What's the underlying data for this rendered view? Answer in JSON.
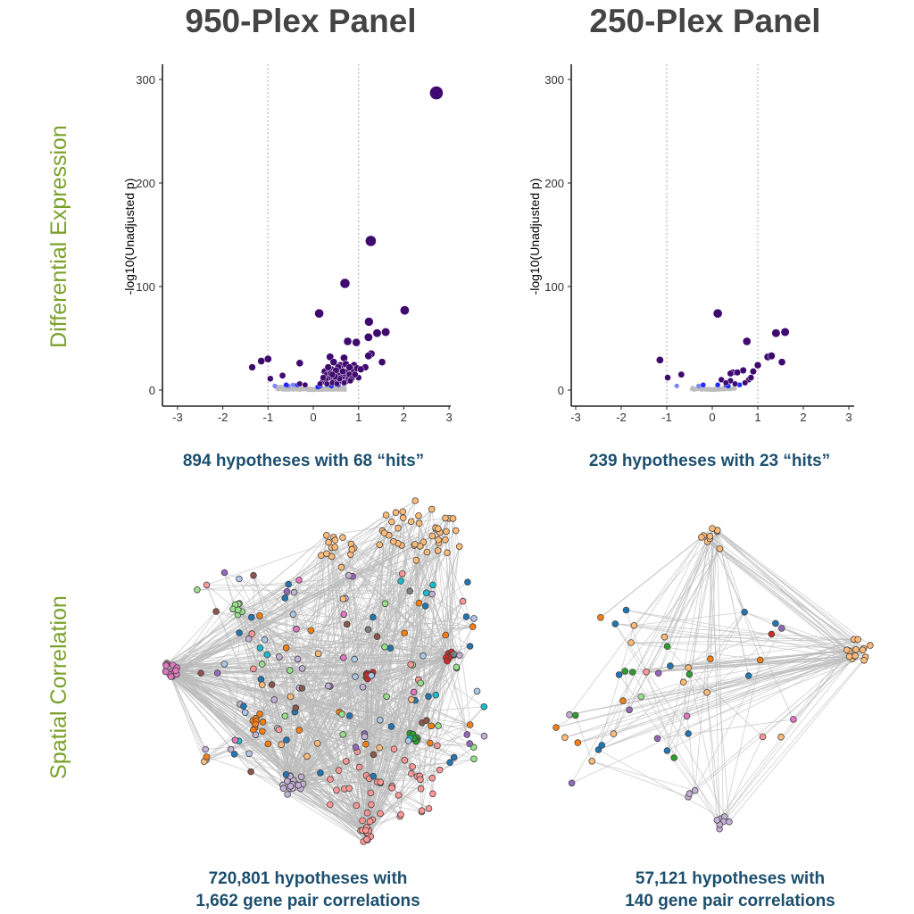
{
  "titles": {
    "left": "950-Plex Panel",
    "right": "250-Plex Panel"
  },
  "row_labels": {
    "top": "Differential Expression",
    "bottom": "Spatial Correlation"
  },
  "captions": {
    "volcano_left": "894 hypotheses with 68 “hits”",
    "volcano_right": "239 hypotheses with 23 “hits”",
    "network_left_line1": "720,801 hypotheses with",
    "network_left_line2": "1,662 gene pair correlations",
    "network_right_line1": "57,121 hypotheses with",
    "network_right_line2": "140 gene pair correlations"
  },
  "colors": {
    "hit": "#3f0a70",
    "sig_blue": "#1f2cff",
    "light_blue": "#7b86ff",
    "nonsig": "#bdbdbd",
    "threshold": "#aaaaaa",
    "edge": "#bbbbbb"
  },
  "network_palette": [
    "#1f77b4",
    "#ff7f0e",
    "#ffbb78",
    "#2ca02c",
    "#98df8a",
    "#d62728",
    "#ff9896",
    "#9467bd",
    "#c5b0d5",
    "#8c564b",
    "#e377c2",
    "#7f7f7f",
    "#17becf",
    "#aec7e8"
  ],
  "chart_data": [
    {
      "type": "scatter",
      "title": "950-Plex Panel",
      "xlabel": "",
      "ylabel": "-log10(Unadjusted p)",
      "xlim": [
        -3,
        3
      ],
      "ylim": [
        -15,
        315
      ],
      "xticks": [
        "-3",
        "-2",
        "-1",
        "0",
        "1",
        "2",
        "3"
      ],
      "yticks": [
        "0",
        "100",
        "200",
        "300"
      ],
      "threshold_lines_x": [
        -1,
        1
      ],
      "grid": false,
      "hits": [
        [
          2.72,
          287
        ],
        [
          1.27,
          144
        ],
        [
          0.7,
          103
        ],
        [
          0.13,
          74
        ],
        [
          2.02,
          77
        ],
        [
          1.23,
          66
        ],
        [
          1.41,
          55
        ],
        [
          1.6,
          56
        ],
        [
          0.76,
          47
        ],
        [
          0.95,
          46
        ],
        [
          1.22,
          51
        ],
        [
          1.28,
          35
        ],
        [
          1.22,
          33
        ],
        [
          1.52,
          27
        ],
        [
          0.37,
          32
        ],
        [
          0.68,
          31
        ],
        [
          -0.3,
          26
        ],
        [
          -1.35,
          22
        ],
        [
          -1.15,
          28
        ],
        [
          -1.0,
          30
        ],
        [
          -0.95,
          11
        ],
        [
          -0.68,
          14
        ],
        [
          0.9,
          24
        ],
        [
          1.0,
          12
        ],
        [
          1.15,
          22
        ],
        [
          0.25,
          18
        ],
        [
          0.3,
          15
        ],
        [
          0.35,
          12
        ],
        [
          0.4,
          20
        ],
        [
          0.45,
          10
        ],
        [
          0.5,
          17
        ],
        [
          0.55,
          14
        ],
        [
          0.6,
          9
        ],
        [
          0.62,
          20
        ],
        [
          0.65,
          13
        ],
        [
          0.7,
          16
        ],
        [
          0.72,
          8
        ],
        [
          0.75,
          18
        ],
        [
          0.78,
          12
        ],
        [
          0.8,
          15
        ],
        [
          0.85,
          11
        ],
        [
          0.88,
          20
        ],
        [
          0.2,
          8
        ],
        [
          0.28,
          10
        ],
        [
          0.42,
          7
        ],
        [
          0.52,
          6
        ],
        [
          0.58,
          11
        ],
        [
          0.68,
          7
        ],
        [
          0.48,
          13
        ],
        [
          0.38,
          16
        ],
        [
          0.3,
          6
        ],
        [
          0.82,
          9
        ],
        [
          -0.3,
          6
        ],
        [
          -0.18,
          5
        ],
        [
          0.15,
          6
        ],
        [
          0.22,
          12
        ],
        [
          0.92,
          15
        ],
        [
          0.97,
          21
        ],
        [
          0.6,
          24
        ],
        [
          0.45,
          27
        ],
        [
          0.55,
          22
        ],
        [
          0.33,
          22
        ],
        [
          0.72,
          25
        ],
        [
          0.8,
          22
        ],
        [
          1.05,
          20
        ],
        [
          0.65,
          18
        ],
        [
          0.5,
          19
        ],
        [
          0.42,
          15
        ]
      ],
      "significant": [
        [
          -0.6,
          5
        ],
        [
          -0.35,
          5
        ],
        [
          0.15,
          4
        ],
        [
          0.3,
          5
        ],
        [
          0.4,
          4
        ],
        [
          0.55,
          5
        ],
        [
          0.1,
          3
        ]
      ],
      "weak": [
        [
          -0.85,
          4
        ],
        [
          -0.55,
          4
        ],
        [
          -0.45,
          5
        ]
      ]
    },
    {
      "type": "scatter",
      "title": "250-Plex Panel",
      "xlabel": "",
      "ylabel": "-log10(Unadjusted p)",
      "xlim": [
        -3,
        3
      ],
      "ylim": [
        -15,
        315
      ],
      "xticks": [
        "-3",
        "-2",
        "-1",
        "0",
        "1",
        "2",
        "3"
      ],
      "yticks": [
        "0",
        "100",
        "200",
        "300"
      ],
      "threshold_lines_x": [
        -1,
        1
      ],
      "grid": false,
      "hits": [
        [
          0.12,
          74
        ],
        [
          1.4,
          55
        ],
        [
          1.6,
          56
        ],
        [
          0.76,
          47
        ],
        [
          -1.15,
          29
        ],
        [
          1.22,
          32
        ],
        [
          1.3,
          33
        ],
        [
          1.53,
          27
        ],
        [
          1.0,
          24
        ],
        [
          0.9,
          18
        ],
        [
          0.45,
          17
        ],
        [
          0.68,
          19
        ],
        [
          0.4,
          16
        ],
        [
          0.55,
          17
        ],
        [
          -0.98,
          12
        ],
        [
          -0.68,
          15
        ],
        [
          0.2,
          10
        ],
        [
          0.4,
          9
        ],
        [
          0.3,
          7
        ],
        [
          0.8,
          10
        ],
        [
          0.72,
          7
        ],
        [
          0.85,
          12
        ],
        [
          0.5,
          6
        ]
      ],
      "significant": [
        [
          -0.2,
          5
        ],
        [
          0.12,
          5
        ],
        [
          0.3,
          5
        ],
        [
          0.6,
          5
        ],
        [
          0.35,
          4
        ]
      ],
      "weak": [
        [
          -0.78,
          4
        ],
        [
          -0.3,
          4
        ]
      ]
    }
  ]
}
